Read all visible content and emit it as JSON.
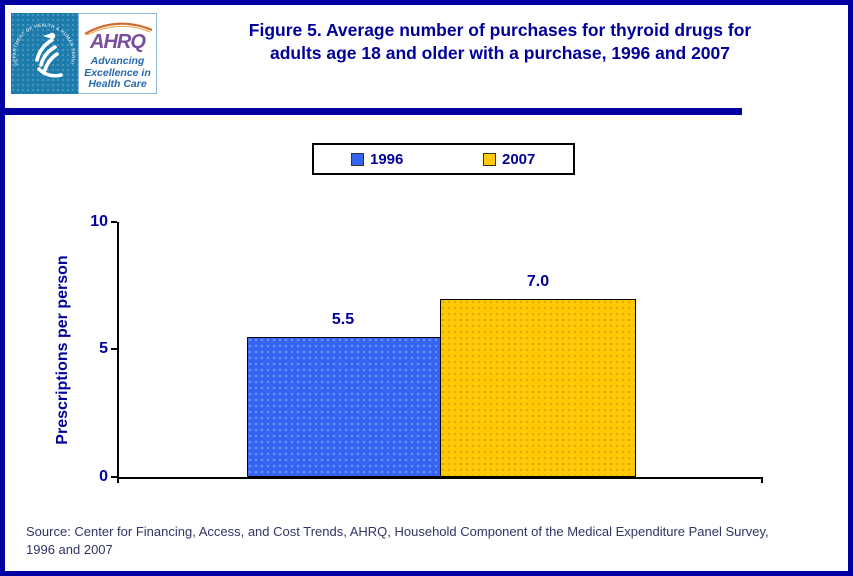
{
  "header": {
    "logo": {
      "seal_text": "DEPARTMENT OF HEALTH & HUMAN SERVICES • USA",
      "brand": "AHRQ",
      "tagline": [
        "Advancing",
        "Excellence in",
        "Health Care"
      ]
    },
    "title_lines": [
      "Figure 5. Average number of purchases for thyroid drugs for",
      "adults age 18 and older with a purchase, 1996 and 2007"
    ]
  },
  "legend": {
    "items": [
      {
        "label": "1996",
        "color": "#3564F2"
      },
      {
        "label": "2007",
        "color": "#FFC905"
      }
    ]
  },
  "chart_data": {
    "type": "bar",
    "title": "Figure 5. Average number of purchases for thyroid drugs for adults age 18 and older with a purchase, 1996 and 2007",
    "categories": [
      "1996",
      "2007"
    ],
    "values": [
      5.5,
      7.0
    ],
    "value_labels": [
      "5.5",
      "7.0"
    ],
    "xlabel": "",
    "ylabel": "Prescriptions per person",
    "ylim": [
      0,
      10
    ],
    "yticks": [
      0,
      5,
      10
    ],
    "ytick_labels_top_to_bottom": [
      "10",
      "5",
      "0"
    ],
    "series_colors": [
      "#3564F2",
      "#FFC905"
    ],
    "grid": false,
    "legend_position": "top-center"
  },
  "footer": {
    "source_lines": [
      "Source: Center for Financing, Access, and Cost Trends, AHRQ, Household Component of the Medical Expenditure Panel Survey,",
      "1996 and 2007"
    ]
  },
  "colors": {
    "accent_navy": "#00009B",
    "frame_navy": "#0101A3",
    "footer_text": "#333366",
    "bar_blue": "#3564F2",
    "bar_gold": "#FFC905",
    "seal_background": "#1E7CAD",
    "ahrq_purple": "#7A4E9C",
    "tagline_blue": "#2669AE"
  }
}
